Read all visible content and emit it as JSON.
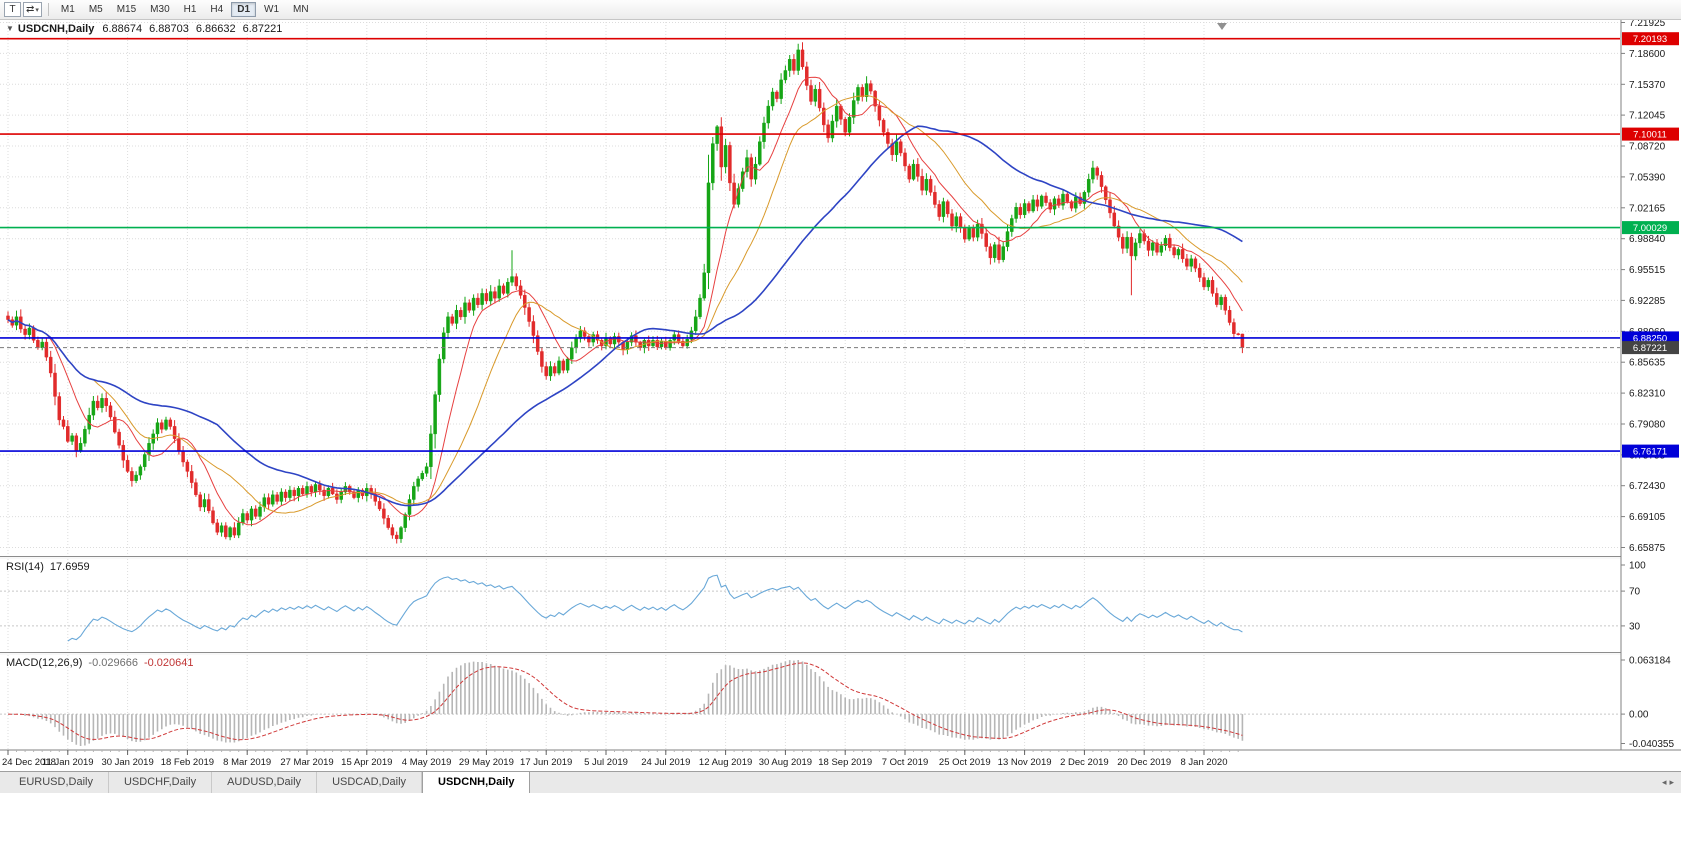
{
  "toolbar": {
    "icons": {
      "t_icon": "T",
      "switch_icon": "⇄",
      "caret_icon": "▾"
    },
    "timeframes": [
      "M1",
      "M5",
      "M15",
      "M30",
      "H1",
      "H4",
      "D1",
      "W1",
      "MN"
    ],
    "active_timeframe": "D1"
  },
  "chart_title": {
    "collapse_icon": "▼",
    "symbol_period": "USDCNH,Daily",
    "open": "6.88674",
    "high": "6.88703",
    "low": "6.86632",
    "close": "6.87221"
  },
  "rsi_label": {
    "name": "RSI(14)",
    "value": "17.6959"
  },
  "macd_label": {
    "name": "MACD(12,26,9)",
    "main_value": "-0.029666",
    "signal_value": "-0.020641"
  },
  "tabs": {
    "items": [
      "EURUSD,Daily",
      "USDCHF,Daily",
      "AUDUSD,Daily",
      "USDCAD,Daily",
      "USDCNH,Daily"
    ],
    "active_index": 4,
    "scroll_left_icon": "◂",
    "scroll_right_icon": "▸"
  },
  "chart_data": {
    "type": "candlestick",
    "symbol": "USDCNH",
    "timeframe": "Daily",
    "last_bar": {
      "open": 6.88674,
      "high": 6.88703,
      "low": 6.86632,
      "close": 6.87221
    },
    "bars_per_label": 14,
    "x_labels": [
      "24 Dec 2018",
      "11 Jan 2019",
      "30 Jan 2019",
      "18 Feb 2019",
      "8 Mar 2019",
      "27 Mar 2019",
      "15 Apr 2019",
      "4 May 2019",
      "29 May 2019",
      "17 Jun 2019",
      "5 Jul 2019",
      "24 Jul 2019",
      "12 Aug 2019",
      "30 Aug 2019",
      "18 Sep 2019",
      "7 Oct 2019",
      "25 Oct 2019",
      "13 Nov 2019",
      "2 Dec 2019",
      "20 Dec 2019",
      "8 Jan 2020"
    ],
    "price_scale_labels": [
      "7.21925",
      "7.18600",
      "7.15370",
      "7.12045",
      "7.08720",
      "7.05390",
      "7.02165",
      "6.98840",
      "6.95515",
      "6.92285",
      "6.88960",
      "6.85635",
      "6.82310",
      "6.79080",
      "6.75755",
      "6.72430",
      "6.69105",
      "6.65875"
    ],
    "price_axis_range": [
      6.65875,
      7.21925
    ],
    "closes": [
      6.902,
      6.896,
      6.905,
      6.892,
      6.886,
      6.893,
      6.88,
      6.872,
      6.878,
      6.862,
      6.845,
      6.82,
      6.795,
      6.788,
      6.772,
      6.778,
      6.762,
      6.77,
      6.785,
      6.8,
      6.815,
      6.808,
      6.818,
      6.81,
      6.798,
      6.782,
      6.768,
      6.752,
      6.74,
      6.73,
      6.736,
      6.745,
      6.758,
      6.77,
      6.78,
      6.792,
      6.785,
      6.795,
      6.788,
      6.775,
      6.762,
      6.75,
      6.74,
      6.728,
      6.715,
      6.702,
      6.71,
      6.698,
      6.685,
      6.675,
      6.682,
      6.67,
      6.68,
      6.672,
      6.685,
      6.695,
      6.688,
      6.7,
      6.692,
      6.702,
      6.712,
      6.705,
      6.715,
      6.708,
      6.718,
      6.712,
      6.72,
      6.714,
      6.722,
      6.716,
      6.724,
      6.718,
      6.726,
      6.72,
      6.714,
      6.722,
      6.716,
      6.71,
      6.718,
      6.724,
      6.718,
      6.712,
      6.72,
      6.714,
      6.722,
      6.716,
      6.708,
      6.7,
      6.69,
      6.68,
      6.672,
      6.668,
      6.68,
      6.694,
      6.71,
      6.724,
      6.732,
      6.738,
      6.745,
      6.78,
      6.822,
      6.86,
      6.888,
      6.905,
      6.898,
      6.912,
      6.905,
      6.92,
      6.912,
      6.925,
      6.918,
      6.93,
      6.922,
      6.932,
      6.925,
      6.938,
      6.93,
      6.942,
      6.948,
      6.938,
      6.928,
      6.915,
      6.9,
      6.885,
      6.868,
      6.852,
      6.842,
      6.852,
      6.845,
      6.858,
      6.848,
      6.86,
      6.872,
      6.882,
      6.89,
      6.884,
      6.878,
      6.886,
      6.88,
      6.874,
      6.882,
      6.876,
      6.884,
      6.878,
      6.87,
      6.878,
      6.885,
      6.878,
      6.872,
      6.88,
      6.874,
      6.88,
      6.873,
      6.879,
      6.872,
      6.88,
      6.886,
      6.879,
      6.874,
      6.881,
      6.89,
      6.905,
      6.925,
      6.952,
      7.048,
      7.09,
      7.108,
      7.065,
      7.088,
      7.048,
      7.025,
      7.042,
      7.06,
      7.075,
      7.052,
      7.068,
      7.092,
      7.112,
      7.13,
      7.145,
      7.138,
      7.158,
      7.168,
      7.18,
      7.168,
      7.19,
      7.172,
      7.152,
      7.135,
      7.148,
      7.128,
      7.11,
      7.096,
      7.114,
      7.13,
      7.116,
      7.102,
      7.118,
      7.136,
      7.15,
      7.14,
      7.154,
      7.146,
      7.13,
      7.115,
      7.102,
      7.09,
      7.078,
      7.092,
      7.08,
      7.066,
      7.052,
      7.068,
      7.055,
      7.04,
      7.052,
      7.038,
      7.025,
      7.012,
      7.028,
      7.015,
      7.002,
      7.012,
      7.0,
      6.988,
      7.0,
      6.99,
      7.004,
      6.994,
      6.98,
      6.968,
      6.982,
      6.966,
      6.98,
      6.996,
      7.01,
      7.022,
      7.014,
      7.026,
      7.018,
      7.03,
      7.023,
      7.034,
      7.027,
      7.02,
      7.031,
      7.024,
      7.036,
      7.028,
      7.021,
      7.033,
      7.026,
      7.038,
      7.052,
      7.064,
      7.056,
      7.044,
      7.03,
      7.016,
      7.002,
      6.99,
      6.978,
      6.99,
      6.97,
      6.984,
      6.994,
      6.986,
      6.976,
      6.984,
      6.974,
      6.981,
      6.989,
      6.979,
      6.971,
      6.977,
      6.967,
      6.959,
      6.967,
      6.957,
      6.947,
      6.937,
      6.944,
      6.93,
      6.918,
      6.926,
      6.912,
      6.899,
      6.887,
      6.8867,
      6.8722
    ],
    "ohlc_overrides": {
      "91": [
        null,
        null,
        6.663,
        null
      ],
      "118": [
        null,
        6.976,
        null,
        null
      ],
      "185": [
        null,
        7.1965,
        null,
        null
      ],
      "232": [
        null,
        null,
        6.962,
        null
      ],
      "263": [
        null,
        null,
        6.928,
        null
      ],
      "289": [
        6.88674,
        6.88703,
        6.86632,
        6.87221
      ]
    },
    "horizontal_levels": [
      {
        "price": 7.20193,
        "label": "7.20193",
        "color": "#dd0000"
      },
      {
        "price": 7.10011,
        "label": "7.10011",
        "color": "#dd0000"
      },
      {
        "price": 7.00029,
        "label": "7.00029",
        "color": "#00b050"
      },
      {
        "price": 6.8825,
        "label": "6.88250",
        "color": "#0000d8"
      },
      {
        "price": 6.76171,
        "label": "6.76171",
        "color": "#0000d8"
      }
    ],
    "current_price": {
      "price": 6.87221,
      "label": "6.87221",
      "color": "#444444"
    },
    "moving_averages": [
      {
        "period": 10,
        "type": "sma",
        "color": "#e74040",
        "width": 1
      },
      {
        "period": 21,
        "type": "sma",
        "color": "#d99a2b",
        "width": 1
      },
      {
        "period": 50,
        "type": "sma",
        "color": "#2e44c4",
        "width": 1.6
      }
    ],
    "candle_colors": {
      "up": "#16a516",
      "down": "#e12b2b"
    },
    "rsi": {
      "period": 14,
      "current": 17.6959,
      "scale_labels": [
        "100",
        "70",
        "30"
      ],
      "scale_values": [
        100,
        70,
        30
      ],
      "levels": [
        70,
        30
      ],
      "color": "#69a8d8"
    },
    "macd": {
      "fast": 12,
      "slow": 26,
      "signal": 9,
      "current_main": -0.029666,
      "current_signal": -0.020641,
      "scale_labels": [
        "0.063184",
        "0.00",
        "-0.040355"
      ],
      "histogram_color": "#b6b6b6",
      "signal_color": "#d03a3a"
    }
  }
}
